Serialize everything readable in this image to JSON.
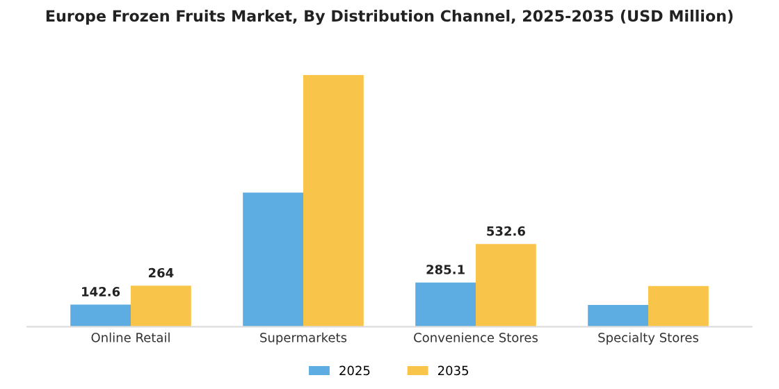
{
  "chart_data": {
    "type": "bar",
    "title": "Europe Frozen Fruits Market, By Distribution Channel, 2025-2035 (USD Million)",
    "categories": [
      "Online Retail",
      "Supermarkets",
      "Convenience Stores",
      "Specialty Stores"
    ],
    "series": [
      {
        "name": "2025",
        "color": "#5dade2",
        "values": [
          142.6,
          864,
          285.1,
          140
        ],
        "value_labels": [
          "142.6",
          null,
          "285.1",
          null
        ]
      },
      {
        "name": "2035",
        "color": "#f9c44a",
        "values": [
          264,
          1620,
          532.6,
          262
        ],
        "value_labels": [
          "264",
          null,
          "532.6",
          null
        ]
      }
    ],
    "legend": "bottom",
    "grid": false
  }
}
